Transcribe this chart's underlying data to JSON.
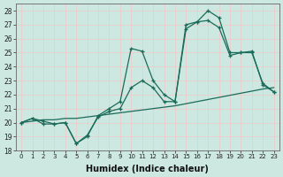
{
  "xlabel": "Humidex (Indice chaleur)",
  "xlim_min": -0.5,
  "xlim_max": 23.5,
  "ylim_min": 18,
  "ylim_max": 28.5,
  "yticks": [
    18,
    19,
    20,
    21,
    22,
    23,
    24,
    25,
    26,
    27,
    28
  ],
  "xticks": [
    0,
    1,
    2,
    3,
    4,
    5,
    6,
    7,
    8,
    9,
    10,
    11,
    12,
    13,
    14,
    15,
    16,
    17,
    18,
    19,
    20,
    21,
    22,
    23
  ],
  "background_color": "#cce8e0",
  "grid_color": "#f0c8c8",
  "line_color": "#1a6b5a",
  "line1_x": [
    0,
    1,
    2,
    3,
    4,
    5,
    6,
    7,
    8,
    9,
    10,
    11,
    12,
    13,
    14,
    15,
    16,
    17,
    18,
    19,
    20,
    21,
    22,
    23
  ],
  "line1_y": [
    20.0,
    20.1,
    20.2,
    20.2,
    20.3,
    20.3,
    20.4,
    20.5,
    20.6,
    20.7,
    20.8,
    20.9,
    21.0,
    21.1,
    21.2,
    21.35,
    21.5,
    21.65,
    21.8,
    21.95,
    22.1,
    22.25,
    22.4,
    22.5
  ],
  "line2_x": [
    0,
    1,
    2,
    3,
    4,
    5,
    6,
    7,
    8,
    9,
    10,
    11,
    12,
    13,
    14,
    15,
    16,
    17,
    18,
    19,
    20,
    21,
    22,
    23
  ],
  "line2_y": [
    20.0,
    20.3,
    20.1,
    19.9,
    20.0,
    18.5,
    19.0,
    20.5,
    21.0,
    21.5,
    25.3,
    25.1,
    23.0,
    22.0,
    21.5,
    27.0,
    27.2,
    28.0,
    27.5,
    25.0,
    25.0,
    25.0,
    22.8,
    22.2
  ],
  "line3_x": [
    0,
    1,
    2,
    3,
    4,
    5,
    6,
    7,
    8,
    9,
    10,
    11,
    12,
    13,
    14,
    15,
    16,
    17,
    18,
    19,
    20,
    21,
    22,
    23
  ],
  "line3_y": [
    20.0,
    20.3,
    19.9,
    19.9,
    20.0,
    18.5,
    19.1,
    20.4,
    20.8,
    21.0,
    22.5,
    23.0,
    22.5,
    21.5,
    21.5,
    26.7,
    27.2,
    27.3,
    26.8,
    24.8,
    25.0,
    25.1,
    22.7,
    22.2
  ]
}
